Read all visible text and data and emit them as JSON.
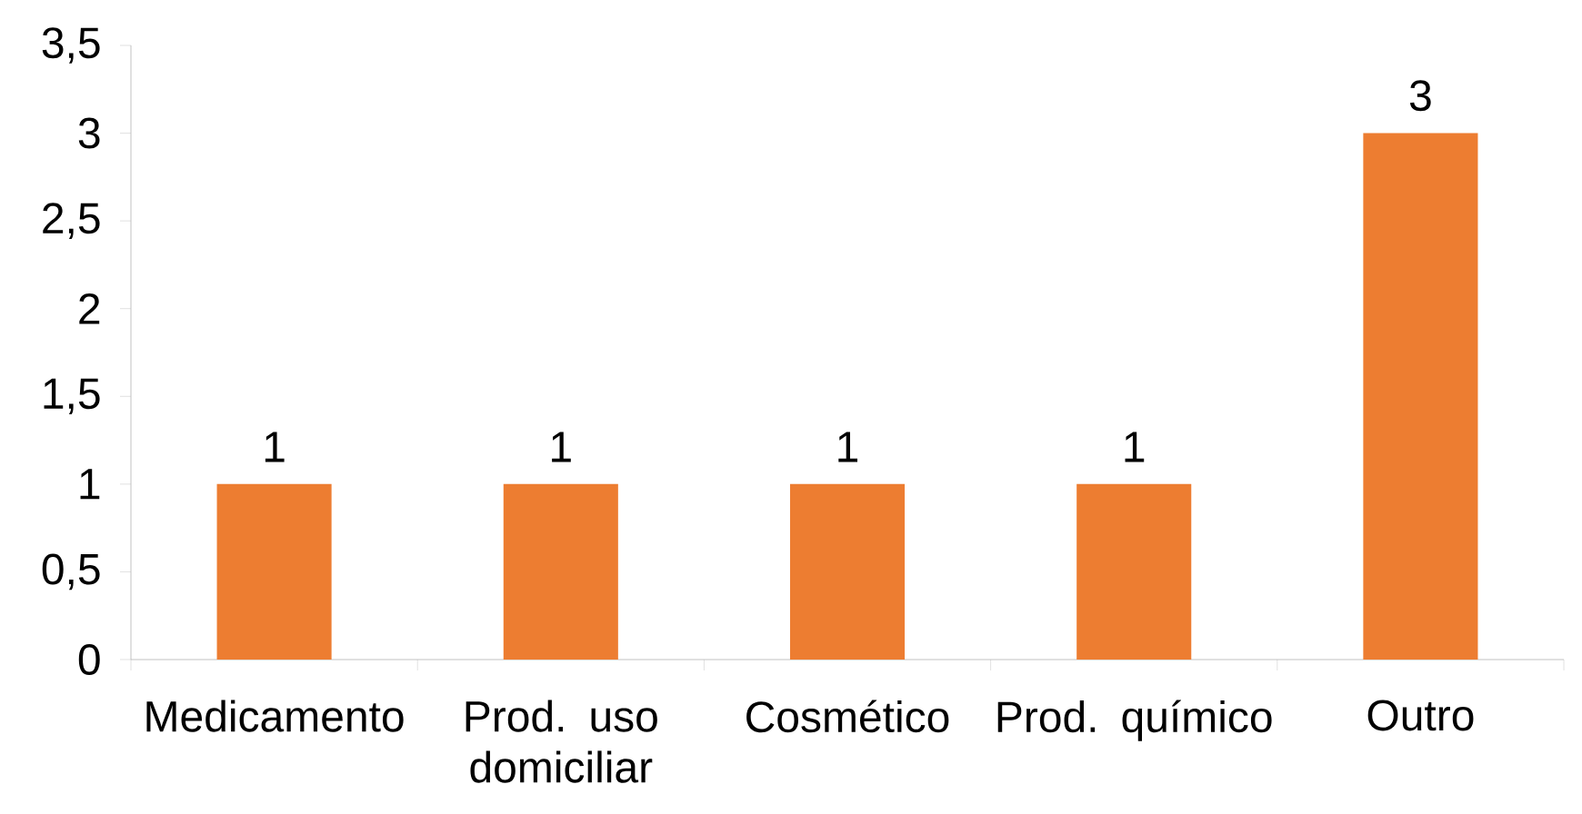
{
  "chart_data": {
    "type": "bar",
    "categories": [
      "Medicamento",
      "Prod. uso domiciliar",
      "Cosmético",
      "Prod. químico",
      "Outro"
    ],
    "values": [
      1,
      1,
      1,
      1,
      3
    ],
    "color": "#ed7d31",
    "ylim": [
      0,
      3.5
    ],
    "yticks": [
      0,
      {
        "value": 0.5,
        "label": "0,5"
      },
      1,
      {
        "value": 1.5,
        "label": "1,5"
      },
      2,
      {
        "value": 2.5,
        "label": "2,5"
      },
      3,
      {
        "value": 3.5,
        "label": "3,5"
      }
    ],
    "data_labels": true
  }
}
